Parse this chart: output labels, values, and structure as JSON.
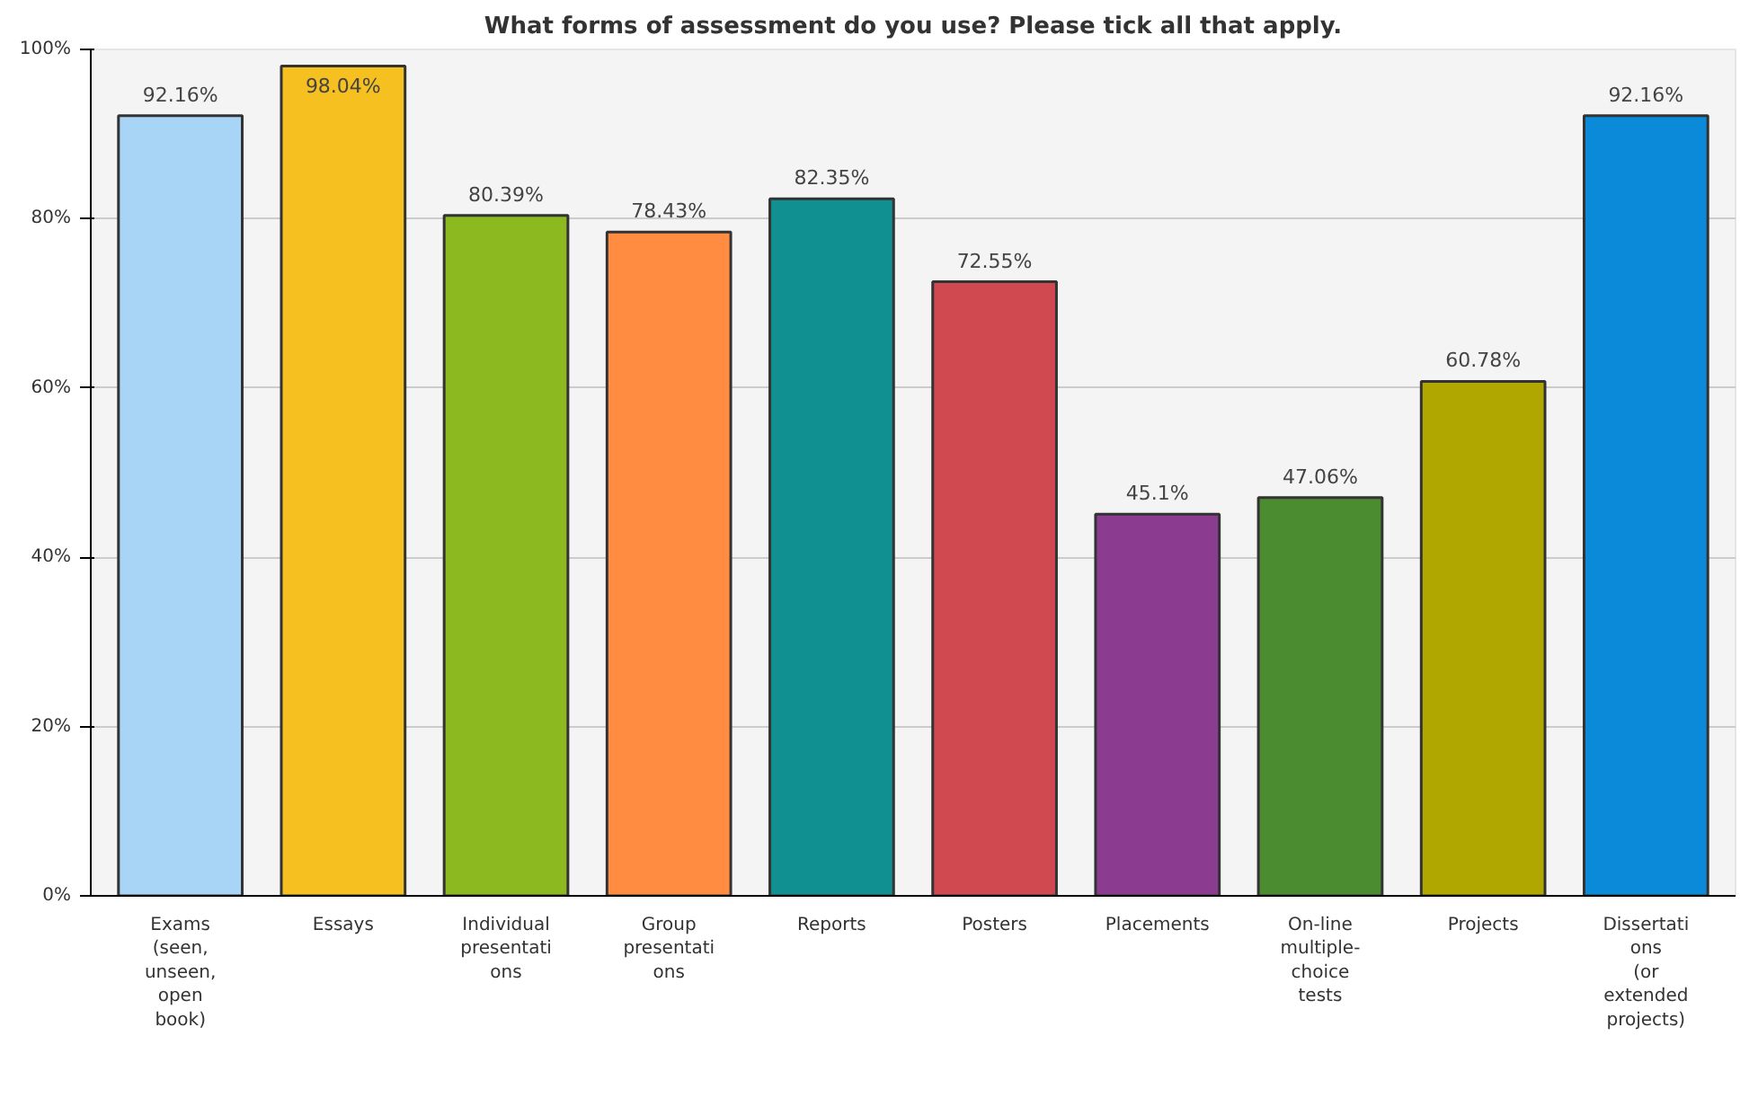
{
  "chart_data": {
    "type": "bar",
    "title": "What forms of assessment do you use? Please tick all that apply.",
    "categories": [
      "Exams (seen, unseen, open book)",
      "Essays",
      "Individual presentations",
      "Group presentations",
      "Reports",
      "Posters",
      "Placements",
      "On-line multiple-choice tests",
      "Projects",
      "Dissertations (or extended projects)"
    ],
    "values": [
      92.16,
      98.04,
      80.39,
      78.43,
      82.35,
      72.55,
      45.1,
      47.06,
      60.78,
      92.16
    ],
    "value_labels": [
      "92.16%",
      "98.04%",
      "80.39%",
      "78.43%",
      "82.35%",
      "72.55%",
      "45.1%",
      "47.06%",
      "60.78%",
      "92.16%"
    ],
    "colors": [
      "#a8d4f5",
      "#f5c020",
      "#8cb820",
      "#ff8c40",
      "#109090",
      "#d04850",
      "#8c3c90",
      "#4c8c30",
      "#b0a800",
      "#0a8ad8"
    ],
    "ylim": [
      0,
      100
    ],
    "yticks": [
      {
        "value": 0,
        "label": "0%"
      },
      {
        "value": 20,
        "label": "20%"
      },
      {
        "value": 40,
        "label": "40%"
      },
      {
        "value": 60,
        "label": "60%"
      },
      {
        "value": 80,
        "label": "80%"
      },
      {
        "value": 100,
        "label": "100%"
      }
    ],
    "grid": "y"
  }
}
